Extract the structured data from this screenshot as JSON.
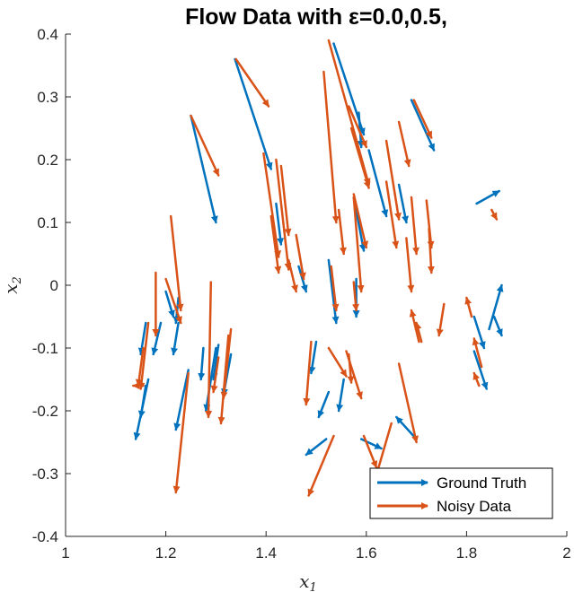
{
  "chart_data": {
    "type": "quiver",
    "title": "Flow Data with ε=0.0,0.5,",
    "xlabel": "x",
    "xlabel_sub": "1",
    "ylabel": "x",
    "ylabel_sub": "2",
    "xlim": [
      1,
      2
    ],
    "ylim": [
      -0.4,
      0.4
    ],
    "xticks": [
      "1",
      "1.2",
      "1.4",
      "1.6",
      "1.8",
      "2"
    ],
    "yticks": [
      "-0.4",
      "-0.3",
      "-0.2",
      "-0.1",
      "0",
      "0.1",
      "0.2",
      "0.3",
      "0.4"
    ],
    "legend_position": "bottom-right",
    "series": [
      {
        "name": "Ground Truth",
        "color": "#0072BD",
        "arrows": [
          [
            1.535,
            0.385,
            1.595,
            0.24
          ],
          [
            1.338,
            0.36,
            1.41,
            0.185
          ],
          [
            1.69,
            0.295,
            1.735,
            0.215
          ],
          [
            1.25,
            0.27,
            1.3,
            0.1
          ],
          [
            1.585,
            0.275,
            1.59,
            0.22
          ],
          [
            1.605,
            0.215,
            1.64,
            0.11
          ],
          [
            1.665,
            0.16,
            1.68,
            0.1
          ],
          [
            1.42,
            0.13,
            1.43,
            0.065
          ],
          [
            1.82,
            0.13,
            1.865,
            0.15
          ],
          [
            1.575,
            0.14,
            1.595,
            0.055
          ],
          [
            1.465,
            0.03,
            1.48,
            -0.01
          ],
          [
            1.525,
            0.04,
            1.54,
            -0.06
          ],
          [
            1.58,
            0.01,
            1.58,
            -0.05
          ],
          [
            1.225,
            -0.02,
            1.22,
            -0.06
          ],
          [
            1.2,
            -0.01,
            1.215,
            -0.05
          ],
          [
            1.845,
            -0.07,
            1.87,
            0.0
          ],
          [
            1.815,
            -0.05,
            1.835,
            -0.1
          ],
          [
            1.815,
            -0.105,
            1.84,
            -0.165
          ],
          [
            1.19,
            -0.06,
            1.175,
            -0.11
          ],
          [
            1.225,
            -0.06,
            1.215,
            -0.11
          ],
          [
            1.16,
            -0.06,
            1.15,
            -0.11
          ],
          [
            1.165,
            -0.15,
            1.14,
            -0.245
          ],
          [
            1.16,
            -0.16,
            1.15,
            -0.21
          ],
          [
            1.245,
            -0.135,
            1.22,
            -0.23
          ],
          [
            1.3,
            -0.1,
            1.28,
            -0.2
          ],
          [
            1.275,
            -0.1,
            1.27,
            -0.15
          ],
          [
            1.305,
            -0.095,
            1.295,
            -0.15
          ],
          [
            1.33,
            -0.11,
            1.315,
            -0.175
          ],
          [
            1.5,
            -0.09,
            1.49,
            -0.14
          ],
          [
            1.555,
            -0.15,
            1.545,
            -0.2
          ],
          [
            1.525,
            -0.17,
            1.505,
            -0.21
          ],
          [
            1.59,
            -0.245,
            1.63,
            -0.26
          ],
          [
            1.52,
            -0.245,
            1.48,
            -0.27
          ],
          [
            1.7,
            -0.245,
            1.66,
            -0.21
          ],
          [
            1.855,
            -0.05,
            1.87,
            -0.08
          ]
        ]
      },
      {
        "name": "Noisy Data",
        "color": "#D95319",
        "arrows": [
          [
            1.525,
            0.39,
            1.605,
            0.16
          ],
          [
            1.34,
            0.36,
            1.405,
            0.285
          ],
          [
            1.695,
            0.295,
            1.73,
            0.235
          ],
          [
            1.25,
            0.27,
            1.305,
            0.175
          ],
          [
            1.565,
            0.285,
            1.6,
            0.22
          ],
          [
            1.57,
            0.25,
            1.605,
            0.155
          ],
          [
            1.665,
            0.26,
            1.685,
            0.19
          ],
          [
            1.515,
            0.34,
            1.54,
            0.1
          ],
          [
            1.545,
            0.12,
            1.555,
            0.05
          ],
          [
            1.42,
            0.2,
            1.445,
            0.025
          ],
          [
            1.395,
            0.21,
            1.425,
            0.045
          ],
          [
            1.43,
            0.19,
            1.445,
            0.08
          ],
          [
            1.41,
            0.11,
            1.425,
            0.02
          ],
          [
            1.64,
            0.23,
            1.665,
            0.105
          ],
          [
            1.64,
            0.165,
            1.66,
            0.06
          ],
          [
            1.575,
            0.145,
            1.6,
            0.06
          ],
          [
            1.575,
            0.14,
            1.59,
            -0.01
          ],
          [
            1.72,
            0.135,
            1.73,
            0.06
          ],
          [
            1.69,
            0.14,
            1.7,
            0.05
          ],
          [
            1.725,
            0.09,
            1.73,
            0.02
          ],
          [
            1.68,
            0.075,
            1.69,
            -0.01
          ],
          [
            1.46,
            0.08,
            1.475,
            0.01
          ],
          [
            1.445,
            0.04,
            1.46,
            -0.01
          ],
          [
            1.53,
            0.03,
            1.54,
            -0.04
          ],
          [
            1.575,
            0.005,
            1.58,
            -0.04
          ],
          [
            1.21,
            0.11,
            1.23,
            -0.04
          ],
          [
            1.18,
            0.02,
            1.18,
            -0.08
          ],
          [
            1.2,
            0.01,
            1.23,
            -0.06
          ],
          [
            1.165,
            -0.06,
            1.15,
            -0.165
          ],
          [
            1.155,
            -0.1,
            1.145,
            -0.16
          ],
          [
            1.155,
            -0.16,
            1.135,
            -0.16
          ],
          [
            1.245,
            -0.14,
            1.22,
            -0.33
          ],
          [
            1.29,
            0.005,
            1.285,
            -0.21
          ],
          [
            1.325,
            -0.08,
            1.31,
            -0.22
          ],
          [
            1.305,
            -0.115,
            1.295,
            -0.17
          ],
          [
            1.33,
            -0.07,
            1.315,
            -0.18
          ],
          [
            1.49,
            -0.09,
            1.48,
            -0.19
          ],
          [
            1.525,
            -0.1,
            1.56,
            -0.145
          ],
          [
            1.565,
            -0.11,
            1.57,
            -0.155
          ],
          [
            1.56,
            -0.105,
            1.59,
            -0.18
          ],
          [
            1.535,
            -0.24,
            1.485,
            -0.335
          ],
          [
            1.595,
            -0.24,
            1.62,
            -0.29
          ],
          [
            1.65,
            -0.22,
            1.61,
            -0.33
          ],
          [
            1.665,
            -0.125,
            1.7,
            -0.25
          ],
          [
            1.71,
            -0.09,
            1.7,
            -0.06
          ],
          [
            1.755,
            -0.03,
            1.745,
            -0.08
          ],
          [
            1.81,
            -0.05,
            1.8,
            -0.02
          ],
          [
            1.83,
            -0.13,
            1.815,
            -0.085
          ],
          [
            1.825,
            -0.16,
            1.815,
            -0.14
          ],
          [
            1.705,
            -0.09,
            1.69,
            -0.04
          ],
          [
            1.85,
            0.12,
            1.86,
            0.105
          ]
        ]
      }
    ]
  }
}
